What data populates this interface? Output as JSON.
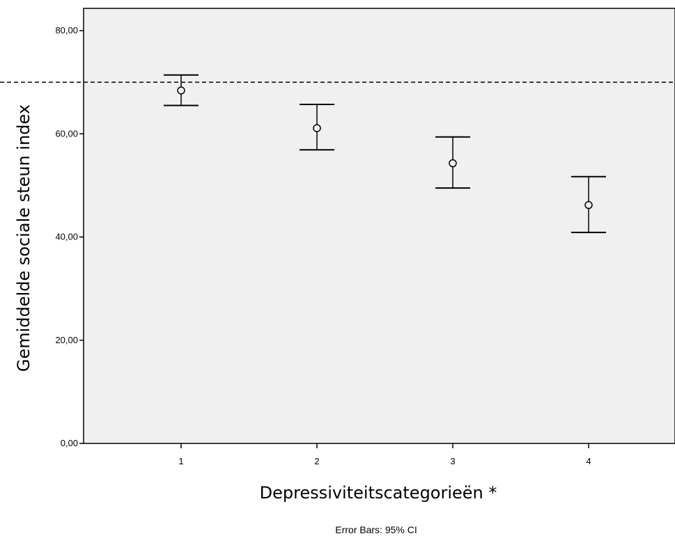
{
  "chart_data": {
    "type": "scatter",
    "title": "",
    "xlabel": "Depressiviteitscategorieën *",
    "ylabel": "Gemiddelde sociale steun index",
    "footnote": "Error Bars: 95% CI",
    "categories": [
      "1",
      "2",
      "3",
      "4"
    ],
    "series": [
      {
        "mean": [
          68.4,
          61.1,
          54.3,
          46.2
        ],
        "ci_low": [
          65.5,
          56.9,
          49.5,
          40.9
        ],
        "ci_high": [
          71.4,
          65.7,
          59.4,
          51.7
        ]
      }
    ],
    "reference_line": {
      "y": 70.0,
      "style": "dashed"
    },
    "ylim": [
      0,
      80
    ],
    "yticks": [
      "0,00",
      "20,00",
      "40,00",
      "60,00",
      "80,00"
    ],
    "ytick_values": [
      0,
      20,
      40,
      60,
      80
    ],
    "grid": false,
    "colors": {
      "plot_background": "#f0f0f0",
      "marker": "#000000"
    }
  }
}
